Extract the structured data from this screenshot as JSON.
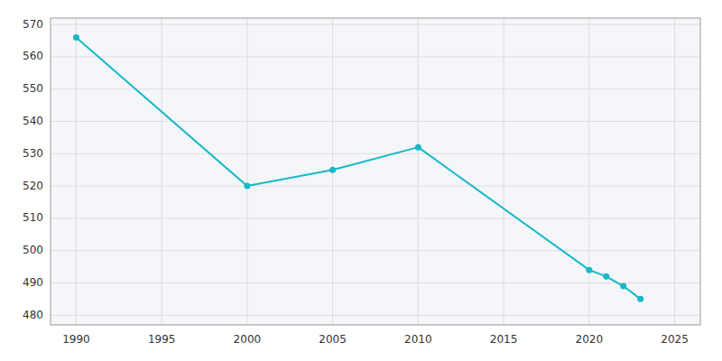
{
  "chart_data": {
    "type": "line",
    "x": [
      1990,
      2000,
      2005,
      2010,
      2020,
      2021,
      2022,
      2023
    ],
    "values": [
      566,
      520,
      525,
      532,
      494,
      492,
      489,
      485
    ],
    "color": "#17b8c8",
    "marker": "circle",
    "xlim": [
      1988.5,
      2026.5
    ],
    "ylim": [
      477,
      572
    ],
    "xticks": [
      1990,
      1995,
      2000,
      2005,
      2010,
      2015,
      2020,
      2025
    ],
    "yticks": [
      480,
      490,
      500,
      510,
      520,
      530,
      540,
      550,
      560,
      570
    ],
    "grid": true
  }
}
